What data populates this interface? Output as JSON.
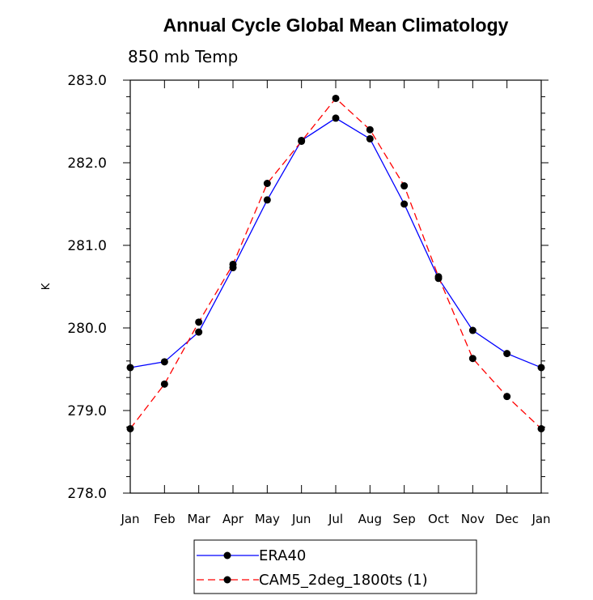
{
  "chart_data": {
    "type": "line",
    "title": "Annual Cycle Global Mean Climatology",
    "subtitle": "850 mb Temp",
    "ylabel": "K",
    "xlabel": "",
    "categories": [
      "Jan",
      "Feb",
      "Mar",
      "Apr",
      "May",
      "Jun",
      "Jul",
      "Aug",
      "Sep",
      "Oct",
      "Nov",
      "Dec",
      "Jan"
    ],
    "ylim": [
      278.0,
      283.0
    ],
    "yticks": [
      "278.0",
      "279.0",
      "280.0",
      "281.0",
      "282.0",
      "283.0"
    ],
    "grid": false,
    "legend_position": "bottom-center",
    "series": [
      {
        "name": "ERA40",
        "color": "#0000ff",
        "line_style": "solid",
        "marker": "filled-circle",
        "values": [
          279.52,
          279.59,
          279.95,
          280.73,
          281.55,
          282.27,
          282.54,
          282.29,
          281.5,
          280.6,
          279.97,
          279.69,
          279.52
        ]
      },
      {
        "name": "CAM5_2deg_1800ts (1)",
        "color": "#ff0000",
        "line_style": "dashed",
        "marker": "filled-circle",
        "values": [
          278.78,
          279.32,
          280.07,
          280.77,
          281.75,
          282.26,
          282.78,
          282.4,
          281.72,
          280.62,
          279.63,
          279.17,
          278.78
        ]
      }
    ]
  }
}
